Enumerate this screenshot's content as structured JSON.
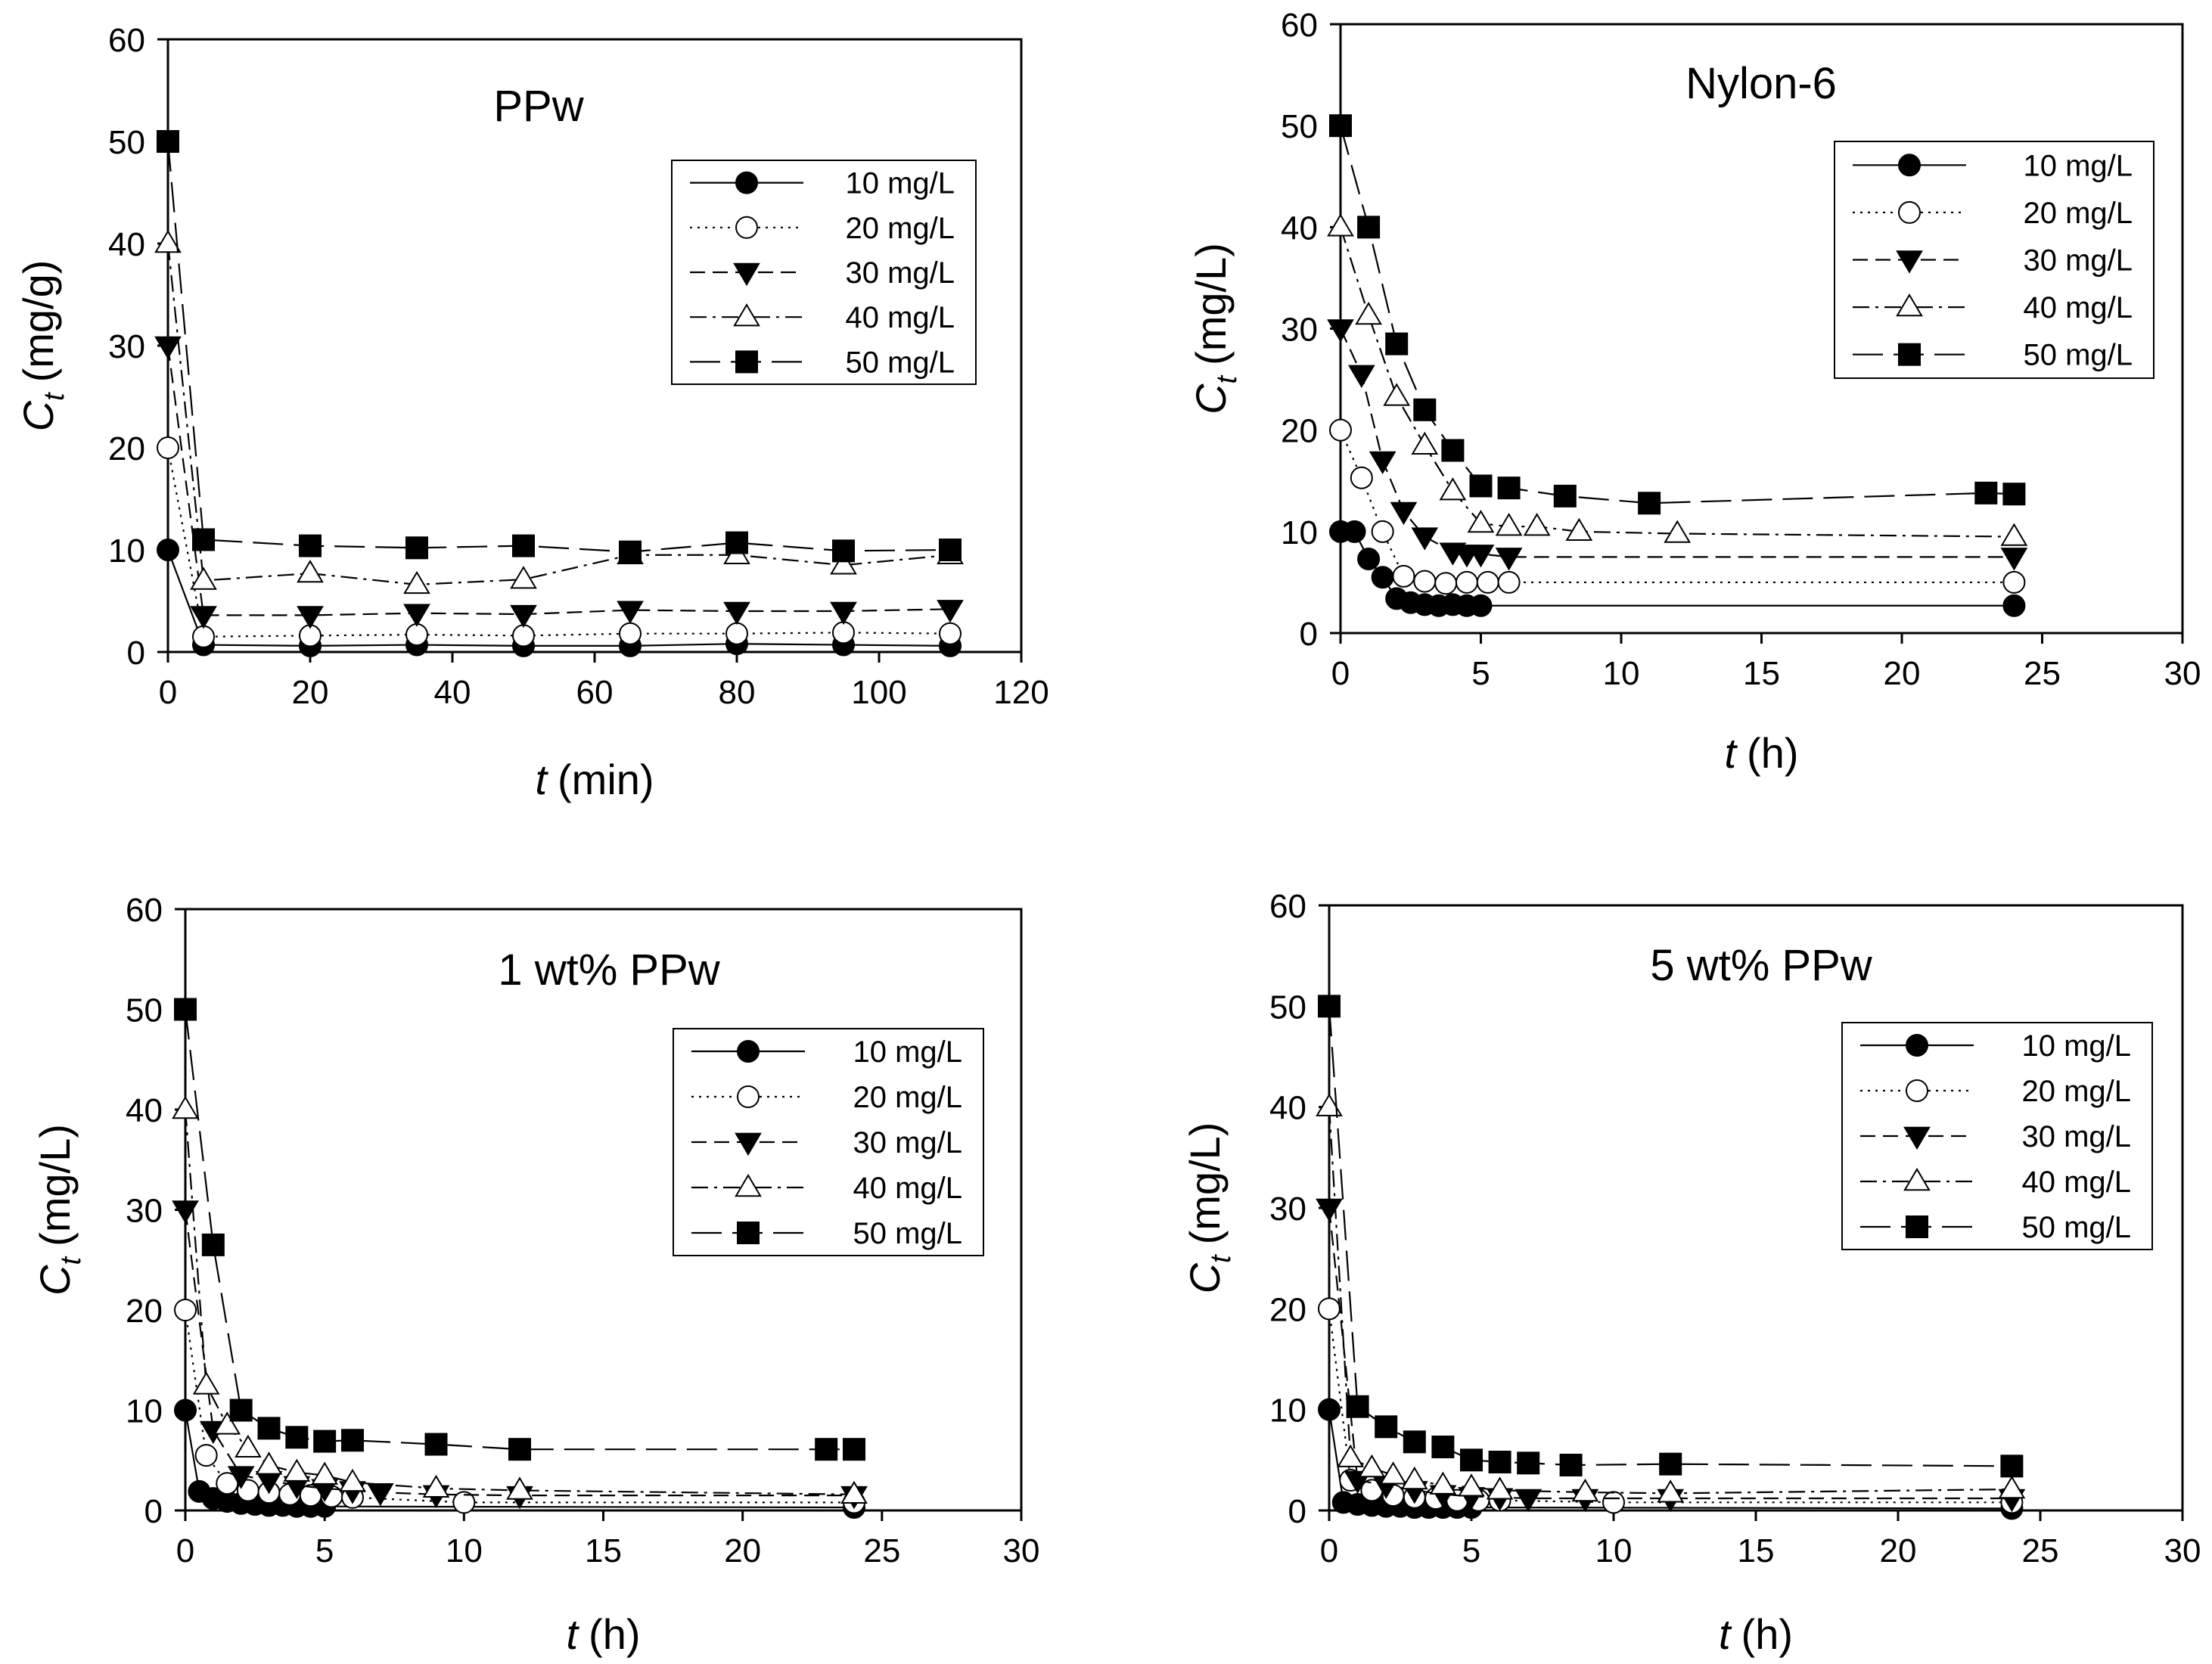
{
  "chart_data": [
    {
      "type": "scatter",
      "title": "PPw",
      "xlabel_var": "t",
      "xlabel_unit": "(min)",
      "ylabel_var": "C",
      "ylabel_sub": "t",
      "ylabel_unit": "(mg/g)",
      "xlim": [
        0,
        120
      ],
      "ylim": [
        0,
        60
      ],
      "xticks": [
        0,
        20,
        40,
        60,
        80,
        100,
        120
      ],
      "yticks": [
        0,
        10,
        20,
        30,
        40,
        50,
        60
      ],
      "legend": "top-right",
      "series": [
        {
          "name": "10 mg/L",
          "marker": "circle-filled",
          "line": "solid",
          "x": [
            0,
            5,
            20,
            35,
            50,
            65,
            80,
            95,
            110
          ],
          "y": [
            10,
            0.7,
            0.6,
            0.7,
            0.6,
            0.6,
            0.8,
            0.7,
            0.6
          ]
        },
        {
          "name": "20 mg/L",
          "marker": "circle-open",
          "line": "dotted",
          "x": [
            0,
            5,
            20,
            35,
            50,
            65,
            80,
            95,
            110
          ],
          "y": [
            20,
            1.5,
            1.6,
            1.7,
            1.6,
            1.8,
            1.8,
            1.9,
            1.8
          ]
        },
        {
          "name": "30 mg/L",
          "marker": "triangle-down-filled",
          "line": "dashed",
          "x": [
            0,
            5,
            20,
            35,
            50,
            65,
            80,
            95,
            110
          ],
          "y": [
            30,
            3.6,
            3.6,
            3.8,
            3.7,
            4.1,
            4.0,
            4.0,
            4.2
          ]
        },
        {
          "name": "40 mg/L",
          "marker": "triangle-up-open",
          "line": "dash-dot",
          "x": [
            0,
            5,
            20,
            35,
            50,
            65,
            80,
            95,
            110
          ],
          "y": [
            40,
            7.0,
            7.7,
            6.6,
            7.1,
            9.5,
            9.5,
            8.5,
            9.5
          ]
        },
        {
          "name": "50 mg/L",
          "marker": "square-filled",
          "line": "long-dash",
          "x": [
            0,
            5,
            20,
            35,
            50,
            65,
            80,
            95,
            110
          ],
          "y": [
            50,
            11.0,
            10.4,
            10.2,
            10.4,
            9.8,
            10.7,
            9.9,
            10.0
          ]
        }
      ]
    },
    {
      "type": "scatter",
      "title": "Nylon-6",
      "xlabel_var": "t",
      "xlabel_unit": "(h)",
      "ylabel_var": "C",
      "ylabel_sub": "t",
      "ylabel_unit": "(mg/L)",
      "xlim": [
        0,
        30
      ],
      "ylim": [
        0,
        60
      ],
      "xticks": [
        0,
        5,
        10,
        15,
        20,
        25,
        30
      ],
      "yticks": [
        0,
        10,
        20,
        30,
        40,
        50,
        60
      ],
      "legend": "top-right",
      "series": [
        {
          "name": "10 mg/L",
          "marker": "circle-filled",
          "line": "solid",
          "x": [
            0,
            0.5,
            1,
            1.5,
            2,
            2.5,
            3,
            3.5,
            4,
            4.5,
            5,
            24
          ],
          "y": [
            10,
            10,
            7.3,
            5.5,
            3.4,
            3.0,
            2.8,
            2.7,
            2.8,
            2.7,
            2.7,
            2.7
          ]
        },
        {
          "name": "20 mg/L",
          "marker": "circle-open",
          "line": "dotted",
          "x": [
            0,
            0.75,
            1.5,
            2.25,
            3,
            3.75,
            4.5,
            5.25,
            6,
            24
          ],
          "y": [
            20,
            15.3,
            10.0,
            5.6,
            5.1,
            4.9,
            5.0,
            5.0,
            5.0,
            5.0
          ]
        },
        {
          "name": "30 mg/L",
          "marker": "triangle-down-filled",
          "line": "dashed",
          "x": [
            0,
            0.75,
            1.5,
            2.25,
            3,
            4,
            4.5,
            5,
            6,
            24
          ],
          "y": [
            30,
            25.5,
            17.0,
            12.0,
            9.5,
            8.0,
            7.8,
            7.8,
            7.5,
            7.5
          ]
        },
        {
          "name": "40 mg/L",
          "marker": "triangle-up-open",
          "line": "dash-dot",
          "x": [
            0,
            1,
            2,
            3,
            4,
            5,
            6,
            7,
            8.5,
            12,
            24
          ],
          "y": [
            40,
            31.3,
            23.3,
            18.5,
            14.0,
            10.8,
            10.5,
            10.5,
            10.0,
            9.8,
            9.5
          ]
        },
        {
          "name": "50 mg/L",
          "marker": "square-filled",
          "line": "long-dash",
          "x": [
            0,
            1,
            2,
            3,
            4,
            5,
            6,
            8,
            11,
            23,
            24
          ],
          "y": [
            50,
            40.0,
            28.5,
            22.0,
            18.0,
            14.5,
            14.3,
            13.5,
            12.8,
            13.8,
            13.7
          ]
        }
      ]
    },
    {
      "type": "scatter",
      "title": "1 wt% PPw",
      "xlabel_var": "t",
      "xlabel_unit": "(h)",
      "ylabel_var": "C",
      "ylabel_sub": "t",
      "ylabel_unit": "(mg/L)",
      "xlim": [
        0,
        30
      ],
      "ylim": [
        0,
        60
      ],
      "xticks": [
        0,
        5,
        10,
        15,
        20,
        25,
        30
      ],
      "yticks": [
        0,
        10,
        20,
        30,
        40,
        50,
        60
      ],
      "legend": "top-right",
      "series": [
        {
          "name": "10 mg/L",
          "marker": "circle-filled",
          "line": "solid",
          "x": [
            0,
            0.5,
            1,
            1.5,
            2,
            2.5,
            3,
            3.5,
            4,
            4.5,
            5,
            24
          ],
          "y": [
            10,
            1.9,
            1.2,
            0.9,
            0.7,
            0.6,
            0.5,
            0.5,
            0.4,
            0.4,
            0.4,
            0.3
          ]
        },
        {
          "name": "20 mg/L",
          "marker": "circle-open",
          "line": "dotted",
          "x": [
            0,
            0.75,
            1.5,
            2.25,
            3,
            3.75,
            4.5,
            5.25,
            6,
            10,
            24
          ],
          "y": [
            20,
            5.5,
            2.7,
            2.0,
            1.8,
            1.6,
            1.5,
            1.4,
            1.3,
            0.8,
            0.8
          ]
        },
        {
          "name": "30 mg/L",
          "marker": "triangle-down-filled",
          "line": "dashed",
          "x": [
            0,
            1,
            2,
            3,
            4,
            5,
            6,
            7,
            9,
            12,
            24
          ],
          "y": [
            30,
            8.0,
            3.5,
            3.0,
            2.5,
            2.2,
            2.0,
            1.8,
            1.6,
            1.5,
            1.5
          ]
        },
        {
          "name": "40 mg/L",
          "marker": "triangle-up-open",
          "line": "dash-dot",
          "x": [
            0,
            0.75,
            1.5,
            2.25,
            3,
            4,
            5,
            6,
            9,
            12,
            24
          ],
          "y": [
            40,
            12.5,
            8.5,
            6.2,
            4.5,
            3.8,
            3.5,
            2.8,
            2.2,
            2.0,
            1.6
          ]
        },
        {
          "name": "50 mg/L",
          "marker": "square-filled",
          "line": "long-dash",
          "x": [
            0,
            1,
            2,
            3,
            4,
            5,
            6,
            9,
            12,
            23,
            24
          ],
          "y": [
            50,
            26.5,
            10.0,
            8.2,
            7.3,
            6.9,
            7.0,
            6.6,
            6.1,
            6.1,
            6.1
          ]
        }
      ]
    },
    {
      "type": "scatter",
      "title": "5 wt% PPw",
      "xlabel_var": "t",
      "xlabel_unit": "(h)",
      "ylabel_var": "C",
      "ylabel_sub": "t",
      "ylabel_unit": "(mg/L)",
      "xlim": [
        0,
        30
      ],
      "ylim": [
        0,
        60
      ],
      "xticks": [
        0,
        5,
        10,
        15,
        20,
        25,
        30
      ],
      "yticks": [
        0,
        10,
        20,
        30,
        40,
        50,
        60
      ],
      "legend": "top-right",
      "series": [
        {
          "name": "10 mg/L",
          "marker": "circle-filled",
          "line": "solid",
          "x": [
            0,
            0.5,
            1,
            1.5,
            2,
            2.5,
            3,
            3.5,
            4,
            4.5,
            5,
            24
          ],
          "y": [
            10,
            0.8,
            0.6,
            0.5,
            0.4,
            0.4,
            0.3,
            0.3,
            0.3,
            0.3,
            0.3,
            0.2
          ]
        },
        {
          "name": "20 mg/L",
          "marker": "circle-open",
          "line": "dotted",
          "x": [
            0,
            0.75,
            1.5,
            2.25,
            3,
            3.75,
            4.5,
            5.25,
            6,
            10,
            24
          ],
          "y": [
            20,
            3.0,
            2.0,
            1.5,
            1.3,
            1.2,
            1.0,
            1.0,
            1.0,
            0.8,
            0.8
          ]
        },
        {
          "name": "30 mg/L",
          "marker": "triangle-down-filled",
          "line": "dashed",
          "x": [
            0,
            1,
            2,
            3,
            4,
            5,
            6,
            7,
            9,
            12,
            24
          ],
          "y": [
            30,
            3.0,
            2.5,
            2.0,
            1.6,
            1.4,
            1.3,
            1.2,
            1.2,
            1.2,
            1.2
          ]
        },
        {
          "name": "40 mg/L",
          "marker": "triangle-up-open",
          "line": "dash-dot",
          "x": [
            0,
            0.75,
            1.5,
            2.25,
            3,
            4,
            5,
            6,
            9,
            12,
            24
          ],
          "y": [
            40,
            5.2,
            4.2,
            3.5,
            3.0,
            2.5,
            2.3,
            2.0,
            1.8,
            1.7,
            2.1
          ]
        },
        {
          "name": "50 mg/L",
          "marker": "square-filled",
          "line": "long-dash",
          "x": [
            0,
            1,
            2,
            3,
            4,
            5,
            6,
            7,
            8.5,
            12,
            24
          ],
          "y": [
            50,
            10.3,
            8.3,
            6.8,
            6.3,
            5.0,
            4.8,
            4.7,
            4.5,
            4.6,
            4.4
          ]
        }
      ]
    }
  ]
}
